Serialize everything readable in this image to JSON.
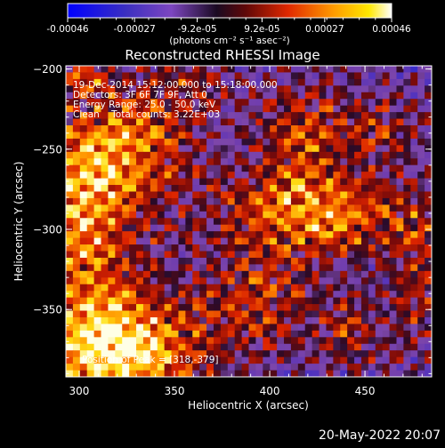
{
  "chart_data": {
    "type": "heatmap",
    "title": "Reconstructed RHESSI Image",
    "xlabel": "Heliocentric X (arcsec)",
    "ylabel": "Heliocentric Y (arcsec)",
    "xlim": [
      293,
      485
    ],
    "ylim": [
      -392,
      -198
    ],
    "x_ticks": [
      300,
      350,
      400,
      450
    ],
    "y_ticks": [
      -200,
      -250,
      -300,
      -350
    ],
    "colorbar": {
      "tick_labels": [
        "-0.00046",
        "-0.00027",
        "-9.2e-05",
        "9.2e-05",
        "0.00027",
        "0.00046"
      ],
      "tick_values": [
        -0.00046,
        -0.00027,
        -9.2e-05,
        9.2e-05,
        0.00027,
        0.00046
      ],
      "range": [
        -0.00046,
        0.00046
      ],
      "unit_label": "(photons cm⁻² s⁻¹ asec⁻²)"
    },
    "annotations": {
      "time_range": "19-Dec-2014 15:12:00.000 to 15:18:00.000",
      "detectors": "Detectors: 3F 6F 7F 9F, Att 0",
      "energy_range": "Energy Range: 25.0 - 50.0 keV",
      "method_counts": "Clean    Total counts: 3.22E+03",
      "peak_position": "Position of Peak = [318,-379]"
    },
    "peak": [
      318,
      -379
    ],
    "emission_regions": [
      {
        "x": 318,
        "y": -375,
        "amp": 1.0,
        "sx": 32,
        "sy": 25
      },
      {
        "x": 302,
        "y": -290,
        "amp": 0.75,
        "sx": 22,
        "sy": 40
      },
      {
        "x": 330,
        "y": -245,
        "amp": 0.55,
        "sx": 24,
        "sy": 24
      },
      {
        "x": 425,
        "y": -290,
        "amp": 0.7,
        "sx": 38,
        "sy": 20
      },
      {
        "x": 395,
        "y": -345,
        "amp": 0.45,
        "sx": 22,
        "sy": 22
      },
      {
        "x": 415,
        "y": -240,
        "amp": 0.45,
        "sx": 16,
        "sy": 24
      },
      {
        "x": 455,
        "y": -235,
        "amp": 0.35,
        "sx": 18,
        "sy": 16
      },
      {
        "x": 478,
        "y": -330,
        "amp": 0.4,
        "sx": 10,
        "sy": 30
      },
      {
        "x": 300,
        "y": -205,
        "amp": 0.5,
        "sx": 10,
        "sy": 8
      },
      {
        "x": 360,
        "y": -210,
        "amp": 0.3,
        "sx": 16,
        "sy": 10
      },
      {
        "x": 445,
        "y": -365,
        "amp": 0.35,
        "sx": 16,
        "sy": 16
      }
    ]
  },
  "footer": {
    "date_stamp": "20-May-2022 20:07"
  },
  "colors": {
    "background": "#000000",
    "text": "#ffffff",
    "colormap": [
      "#0000ff",
      "#2c1ea8",
      "#5a2fa0",
      "#7a40b0",
      "#2a0a2a",
      "#8c0f0f",
      "#e02800",
      "#ff9a00",
      "#ffe000",
      "#ffffff"
    ]
  }
}
